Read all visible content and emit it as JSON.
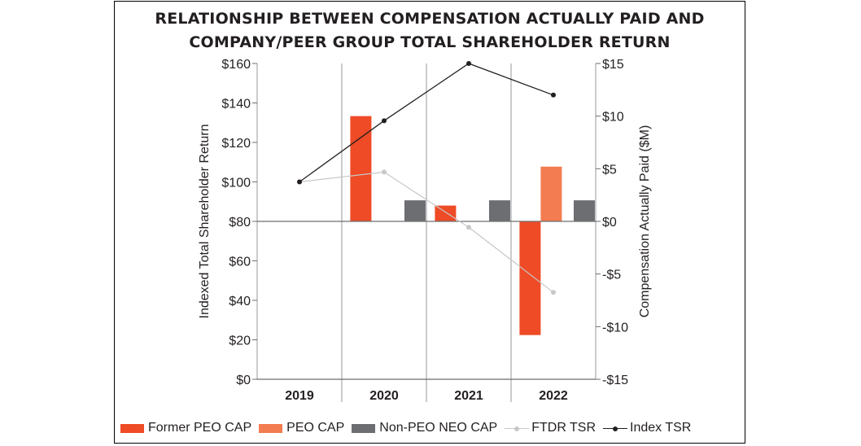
{
  "chart_data": {
    "type": "bar",
    "title_line1": "RELATIONSHIP BETWEEN COMPENSATION ACTUALLY PAID AND",
    "title_line2": "COMPANY/PEER GROUP TOTAL SHAREHOLDER RETURN",
    "categories": [
      "2019",
      "2020",
      "2021",
      "2022"
    ],
    "y_left": {
      "label": "Indexed Total Shareholder Return",
      "range": [
        0,
        160
      ],
      "ticks": [
        0,
        20,
        40,
        60,
        80,
        100,
        120,
        140,
        160
      ],
      "tick_labels": [
        "$0",
        "$20",
        "$40",
        "$60",
        "$80",
        "$100",
        "$120",
        "$140",
        "$160"
      ]
    },
    "y_right": {
      "label": "Compensation Actually Paid ($M)",
      "range": [
        -15,
        15
      ],
      "ticks": [
        -15,
        -10,
        -5,
        0,
        5,
        10,
        15
      ],
      "tick_labels": [
        "-$15",
        "-$10",
        "-$5",
        "$0",
        "$5",
        "$10",
        "$15"
      ]
    },
    "bar_series": [
      {
        "name": "Former PEO CAP",
        "color": "#ee4b26",
        "slot": 0,
        "values": [
          null,
          10.0,
          1.5,
          -10.8
        ]
      },
      {
        "name": "PEO CAP",
        "color": "#f37c50",
        "slot": 1,
        "values": [
          null,
          null,
          null,
          5.2
        ]
      },
      {
        "name": "Non-PEO NEO CAP",
        "color": "#6d6e71",
        "slot": 2,
        "values": [
          null,
          2.0,
          2.0,
          2.0
        ]
      }
    ],
    "line_series": [
      {
        "name": "FTDR TSR",
        "color": "#c8c8c8",
        "values": [
          100,
          105,
          77,
          44
        ]
      },
      {
        "name": "Index TSR",
        "color": "#231f20",
        "values": [
          100,
          131,
          160,
          144
        ]
      }
    ]
  },
  "legend": {
    "former_peo": "Former PEO CAP",
    "peo": "PEO CAP",
    "non_peo": "Non-PEO NEO CAP",
    "ftdr": "FTDR TSR",
    "index": "Index TSR"
  },
  "colors": {
    "former_peo": "#ee4b26",
    "peo": "#f37c50",
    "non_peo": "#6d6e71",
    "ftdr": "#c8c8c8",
    "index": "#231f20"
  }
}
